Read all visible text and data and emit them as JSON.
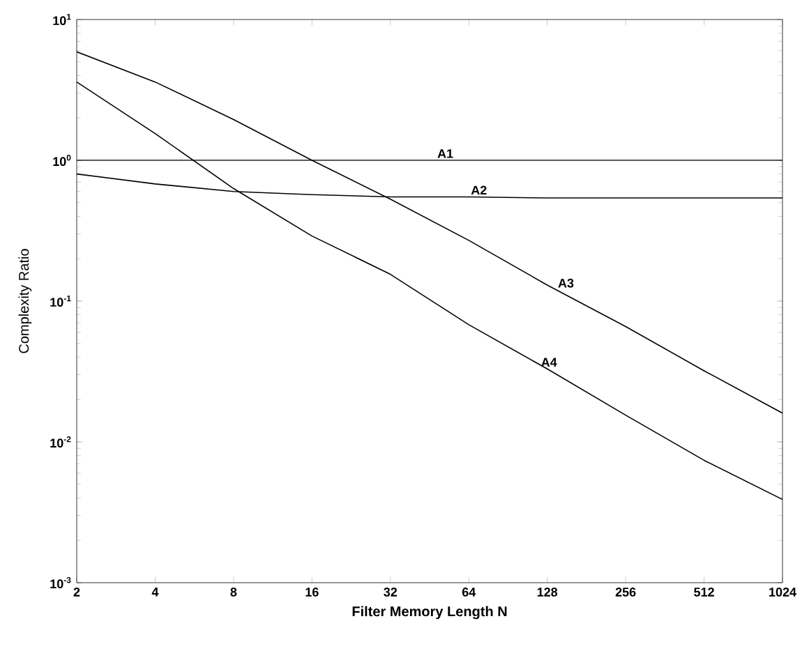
{
  "chart_data": {
    "type": "line",
    "xlabel": "Filter Memory Length  N",
    "ylabel": "Complexity Ratio",
    "log": "xy",
    "grid": false,
    "marker": "none",
    "line_style": "solid",
    "x": [
      2,
      4,
      8,
      16,
      32,
      64,
      128,
      256,
      512,
      1024
    ],
    "series": [
      {
        "color": "#000000",
        "values": [
          1,
          1,
          1,
          1,
          1,
          1,
          1,
          1,
          1,
          1
        ]
      },
      {
        "color": "#000000",
        "values": [
          0.8,
          0.68,
          0.6,
          0.57,
          0.55,
          0.55,
          0.54,
          0.54,
          0.54,
          0.54
        ]
      },
      {
        "color": "#000000",
        "values": [
          5.9,
          3.6,
          1.95,
          1.0,
          0.53,
          0.27,
          0.13,
          0.066,
          0.032,
          0.016
        ]
      },
      {
        "color": "#000000",
        "values": [
          3.6,
          1.55,
          0.63,
          0.29,
          0.155,
          0.068,
          0.033,
          0.0155,
          0.0074,
          0.0039
        ]
      }
    ],
    "annotations": [
      {
        "text": "A1",
        "x": 52,
        "y": 1
      },
      {
        "text": "A2",
        "x": 70,
        "y": 0.55
      },
      {
        "text": "A3",
        "x": 151,
        "y": 0.12
      },
      {
        "text": "A4",
        "x": 130,
        "y": 0.033
      }
    ],
    "xlim": [
      2,
      1024
    ],
    "ylim": [
      0.001,
      10
    ],
    "xticks": [
      2,
      4,
      8,
      16,
      32,
      64,
      128,
      256,
      512,
      1024
    ],
    "yticks": [
      {
        "value": 0.001,
        "label": "10$^{-3}$"
      },
      {
        "value": 0.01,
        "label": "10$^{-2}$"
      },
      {
        "value": 0.1,
        "label": "10$^{-1}$"
      },
      {
        "value": 1,
        "label": "10$^{0}$"
      },
      {
        "value": 10,
        "label": "10$^{1}$"
      }
    ]
  }
}
